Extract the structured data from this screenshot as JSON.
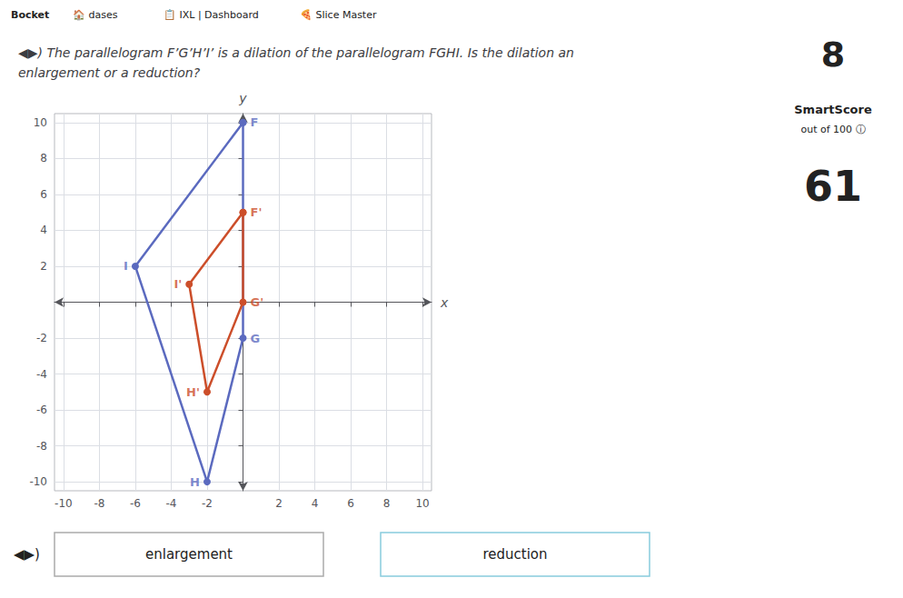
{
  "chart_data": {
    "type": "line",
    "title": "◀▶) The parallelogram F’G’H’I’ is a dilation of the parallelogram FGHI. Is the dilation an\nenlargement or a reduction?",
    "xlabel": "x",
    "ylabel": "y",
    "xlim": [
      -10.5,
      10.5
    ],
    "ylim": [
      -10.5,
      10.5
    ],
    "xticks": [
      -10,
      -8,
      -6,
      -4,
      -2,
      2,
      4,
      6,
      8,
      10
    ],
    "yticks": [
      -10,
      -8,
      -6,
      -4,
      -2,
      2,
      4,
      6,
      8,
      10
    ],
    "grid": true,
    "marker": "circle",
    "series": [
      {
        "color": "#5b6abf",
        "x": [
          0,
          0,
          -2,
          -6,
          0
        ],
        "values": [
          10,
          -2,
          -10,
          2,
          10
        ]
      },
      {
        "color": "#cc4e2a",
        "x": [
          0,
          0,
          -2,
          -3,
          0
        ],
        "values": [
          5,
          0,
          -5,
          1,
          5
        ]
      }
    ],
    "annotations": [
      {
        "text": "F",
        "x": 0,
        "y": 10,
        "color": "#5b6abf"
      },
      {
        "text": "G",
        "x": 0,
        "y": -2,
        "color": "#5b6abf"
      },
      {
        "text": "H",
        "x": -2,
        "y": -10,
        "color": "#5b6abf"
      },
      {
        "text": "I",
        "x": -6,
        "y": 2,
        "color": "#5b6abf"
      },
      {
        "text": "F'",
        "x": 0,
        "y": 5,
        "color": "#cc4e2a"
      },
      {
        "text": "G'",
        "x": 0,
        "y": 0,
        "color": "#cc4e2a"
      },
      {
        "text": "H'",
        "x": -2,
        "y": -5,
        "color": "#cc4e2a"
      },
      {
        "text": "I'",
        "x": -3,
        "y": 1,
        "color": "#cc4e2a"
      },
      {
        "text": "Bocket"
      },
      {
        "text": "🏠 dases"
      },
      {
        "text": "📋 IXL | Dashboard"
      },
      {
        "text": "🍕 Slice Master"
      },
      {
        "text": "8"
      },
      {
        "text": "SmartScore"
      },
      {
        "text": "out of 100 ⓘ"
      },
      {
        "text": "61"
      },
      {
        "text": "◀▶)"
      },
      {
        "text": "enlargement"
      },
      {
        "text": "reduction"
      }
    ]
  }
}
